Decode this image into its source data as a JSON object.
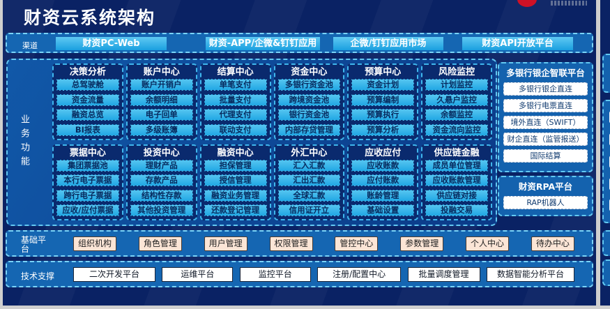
{
  "header": {
    "title": "财资云系统架构"
  },
  "channels": {
    "label": "渠道",
    "items": [
      "财资PC-Web",
      "财资-APP/企微&钉钉应用",
      "企微/钉钉应用市场",
      "财资API开放平台"
    ]
  },
  "business": {
    "label": "业务功能",
    "modules": [
      {
        "title": "决策分析",
        "items": [
          "总驾驶舱",
          "资金流量",
          "融资总览",
          "BI报表"
        ]
      },
      {
        "title": "账户中心",
        "items": [
          "账户开销户",
          "余额明细",
          "电子回单",
          "多级账簿"
        ]
      },
      {
        "title": "结算中心",
        "items": [
          "单笔支付",
          "批量支付",
          "代理支付",
          "联动支付"
        ]
      },
      {
        "title": "资金中心",
        "items": [
          "多银行资金池",
          "跨境资金池",
          "银行资金池",
          "内部存贷管理"
        ]
      },
      {
        "title": "预算中心",
        "items": [
          "资金计划",
          "预算编制",
          "预算执行",
          "预算分析"
        ]
      },
      {
        "title": "风险监控",
        "items": [
          "计划监控",
          "久悬户监控",
          "余额监控",
          "资金流向监控"
        ]
      },
      {
        "title": "票据中心",
        "items": [
          "集团票据池",
          "本行电子票据",
          "跨行电子票据",
          "应收/应付票据"
        ]
      },
      {
        "title": "投资中心",
        "items": [
          "理财产品",
          "存款产品",
          "结构性存款",
          "其他投资管理"
        ]
      },
      {
        "title": "融资中心",
        "items": [
          "担保管理",
          "授信管理",
          "融资业务管理",
          "还款登记管理"
        ]
      },
      {
        "title": "外汇中心",
        "items": [
          "汇入汇款",
          "汇出汇款",
          "全球汇款",
          "信用证开立"
        ]
      },
      {
        "title": "应收应付",
        "items": [
          "应收账款",
          "应付账款",
          "账龄管理",
          "基础设置"
        ]
      },
      {
        "title": "供应链金融",
        "items": [
          "成员单位管理",
          "应收账款管理",
          "供应链对接",
          "投融交易"
        ]
      }
    ]
  },
  "bank_platform": {
    "title": "多银行银企智联平台",
    "items": [
      "多银行银企直连",
      "多银行电票直连",
      "境外直连（SWIFT）",
      "财企直连（监管报送）",
      "国际结算"
    ]
  },
  "rpa_platform": {
    "title": "财资RPA平台",
    "items": [
      "RAP机器人"
    ]
  },
  "base_platform": {
    "label": "基础平台",
    "items": [
      "组织机构",
      "角色管理",
      "用户管理",
      "权限管理",
      "管控中心",
      "参数管理",
      "个人中心",
      "待办中心"
    ]
  },
  "tech_support": {
    "label": "技术支撑",
    "items": [
      "二次开发平台",
      "运维平台",
      "监控平台",
      "注册/配置中心",
      "批量调度管理",
      "数据智能分析平台"
    ]
  },
  "colors": {
    "background": "#0a2264",
    "band_blue": "#1566b2",
    "cyan_button": "#29abe2",
    "module_navy": "#0a2a6e",
    "dashed_border": "#63c9f2",
    "white_box": "#ffffff",
    "cream_box": "#fbe5d6",
    "logo_red": "#ce1126"
  }
}
